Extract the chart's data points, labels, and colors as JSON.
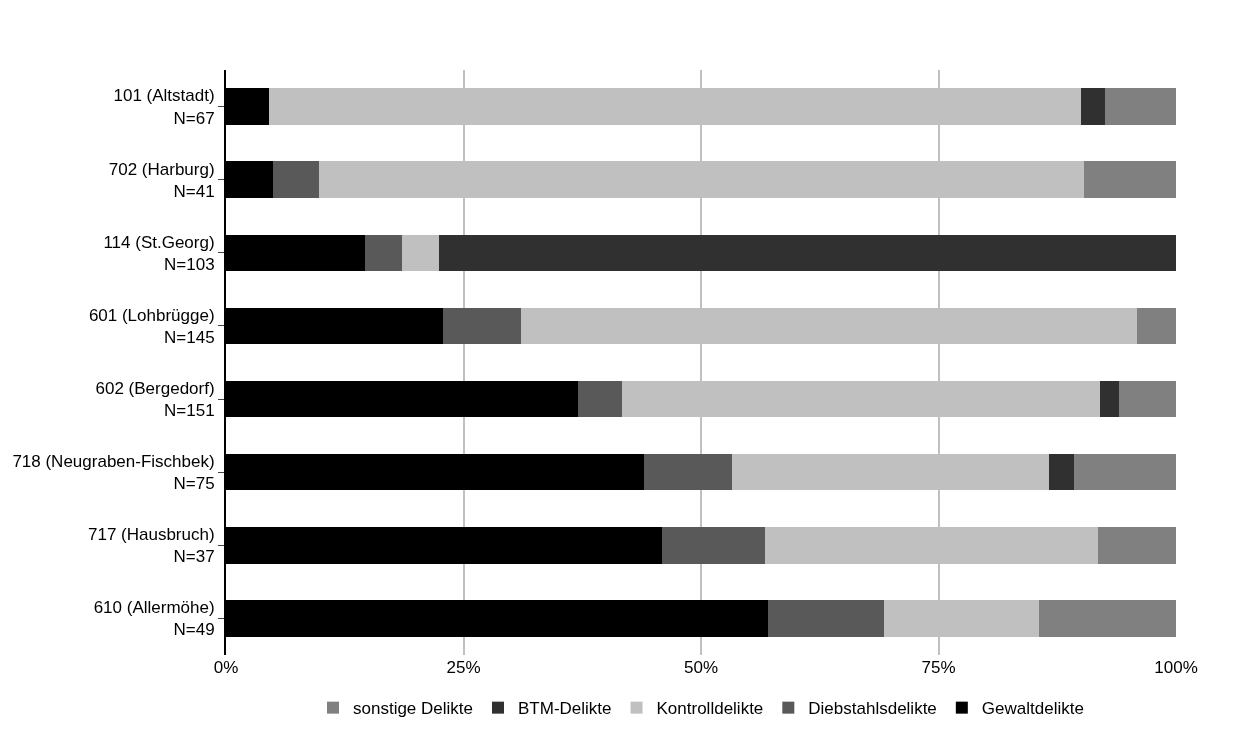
{
  "chart_data": {
    "type": "bar",
    "orientation": "horizontal",
    "stacked": true,
    "categories": [
      "101 (Altstadt)\nN=67",
      "702 (Harburg)\nN=41",
      "114 (St.Georg)\nN=103",
      "601 (Lohbrügge)\nN=145",
      "602 (Bergedorf)\nN=151",
      "718 (Neugraben-Fischbek)\nN=75",
      "717 (Hausbruch)\nN=37",
      "610 (Allermöhe)\nN=49"
    ],
    "series": [
      {
        "name": "Gewaltdelikte",
        "color": "#000000",
        "values": [
          4.5,
          4.9,
          14.6,
          22.8,
          37.1,
          44.0,
          45.9,
          57.1
        ]
      },
      {
        "name": "Diebstahlsdelikte",
        "color": "#595959",
        "values": [
          0,
          4.9,
          3.9,
          8.3,
          4.6,
          9.3,
          10.8,
          12.2
        ]
      },
      {
        "name": "Kontrolldelikte",
        "color": "#c0c0c0",
        "values": [
          85.5,
          80.5,
          3.9,
          64.8,
          50.3,
          33.3,
          35.1,
          16.3
        ]
      },
      {
        "name": "BTM-Delikte",
        "color": "#303030",
        "values": [
          2.5,
          0,
          77.6,
          0,
          2.0,
          2.7,
          0,
          0
        ]
      },
      {
        "name": "sonstige Delikte",
        "color": "#808080",
        "values": [
          7.5,
          9.7,
          0,
          4.1,
          6.0,
          10.7,
          8.2,
          14.4
        ]
      }
    ],
    "xlim": [
      0,
      100
    ],
    "xticks": [
      {
        "value": 0,
        "label": "0%"
      },
      {
        "value": 25,
        "label": "25%"
      },
      {
        "value": 50,
        "label": "50%"
      },
      {
        "value": 75,
        "label": "75%"
      },
      {
        "value": 100,
        "label": "100%"
      }
    ],
    "grid": "x",
    "legend": "bottom"
  }
}
